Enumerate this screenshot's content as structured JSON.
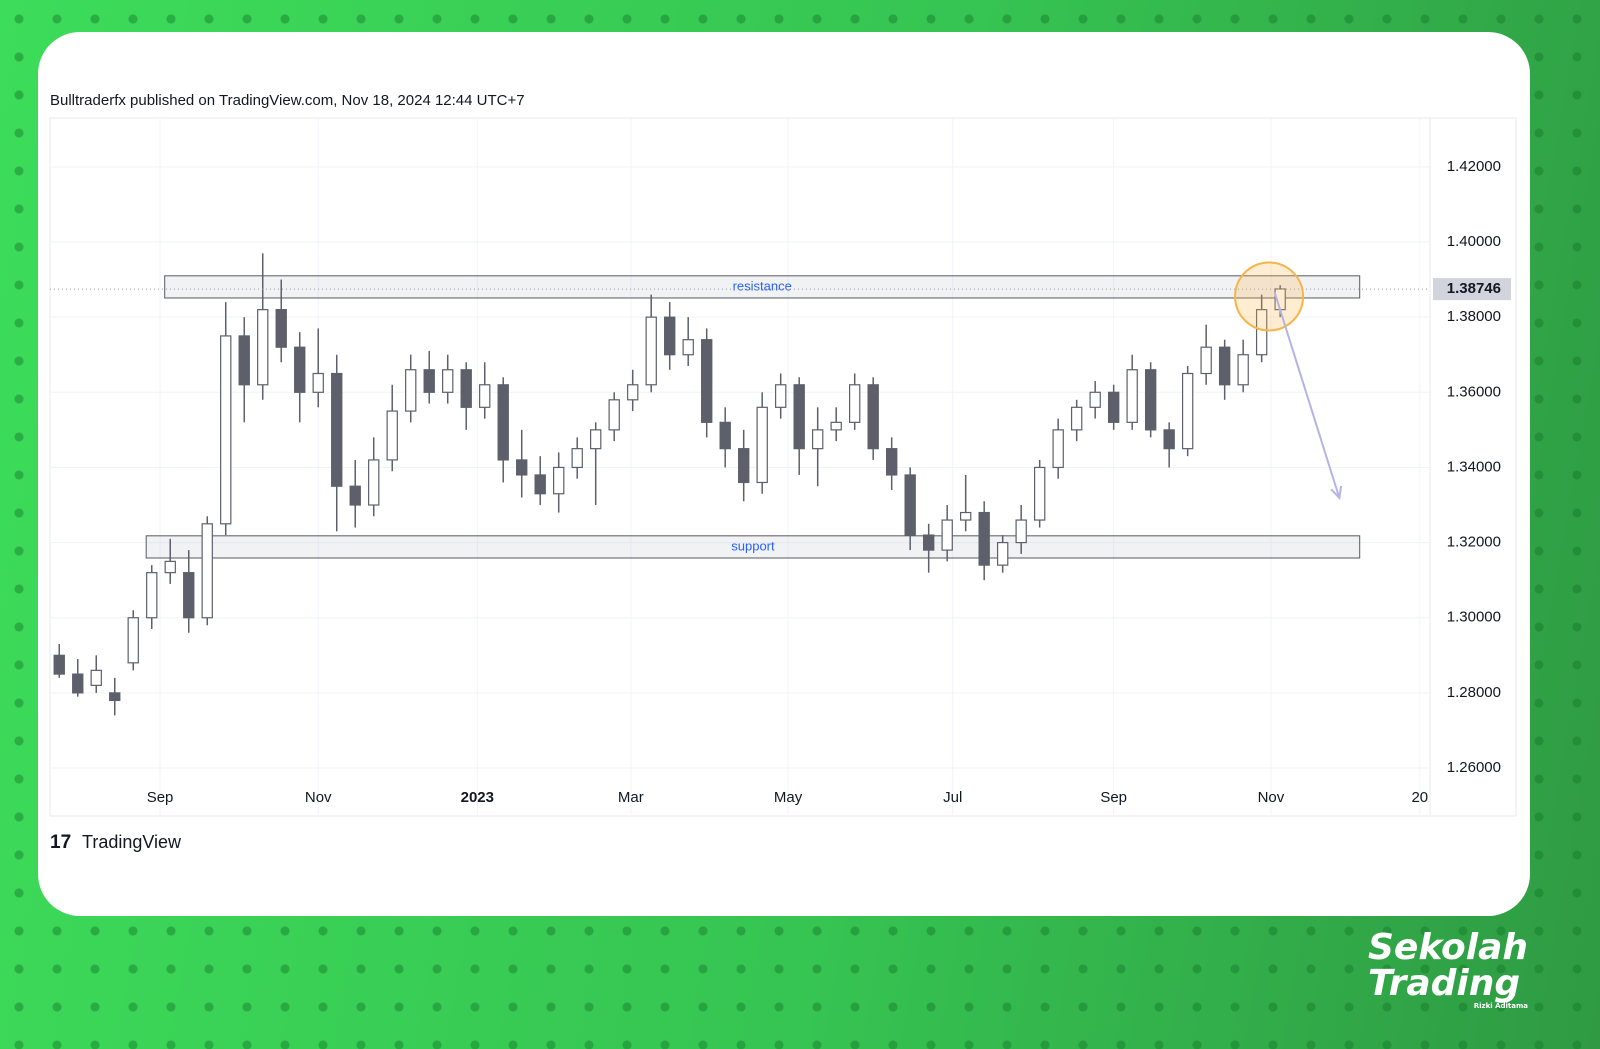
{
  "chart_data": {
    "type": "candlestick",
    "subtitle": "Bulltraderfx published on TradingView.com, Nov 18, 2024 12:44 UTC+7",
    "x": [
      0,
      1,
      2,
      3,
      4,
      5,
      6,
      7,
      8,
      9,
      10,
      11,
      12,
      13,
      14,
      15,
      16,
      17,
      18,
      19,
      20,
      21,
      22,
      23,
      24,
      25,
      26,
      27,
      28,
      29,
      30,
      31,
      32,
      33,
      34,
      35,
      36,
      37,
      38,
      39,
      40,
      41,
      42,
      43,
      44,
      45,
      46,
      47,
      48,
      49,
      50,
      51,
      52,
      53,
      54,
      55,
      56,
      57,
      58,
      59,
      60,
      61,
      62,
      63,
      64,
      65,
      66
    ],
    "open": [
      1.29,
      1.285,
      1.282,
      1.28,
      1.288,
      1.3,
      1.312,
      1.312,
      1.3,
      1.325,
      1.375,
      1.362,
      1.382,
      1.372,
      1.36,
      1.365,
      1.335,
      1.33,
      1.342,
      1.355,
      1.366,
      1.36,
      1.366,
      1.356,
      1.362,
      1.342,
      1.338,
      1.333,
      1.34,
      1.345,
      1.35,
      1.358,
      1.362,
      1.38,
      1.37,
      1.374,
      1.352,
      1.345,
      1.336,
      1.356,
      1.362,
      1.345,
      1.35,
      1.352,
      1.362,
      1.345,
      1.338,
      1.322,
      1.318,
      1.326,
      1.328,
      1.314,
      1.32,
      1.326,
      1.34,
      1.35,
      1.356,
      1.36,
      1.352,
      1.366,
      1.35,
      1.345,
      1.365,
      1.372,
      1.362,
      1.37,
      1.382
    ],
    "high": [
      1.293,
      1.289,
      1.29,
      1.284,
      1.302,
      1.314,
      1.321,
      1.318,
      1.327,
      1.384,
      1.38,
      1.397,
      1.39,
      1.376,
      1.377,
      1.37,
      1.342,
      1.348,
      1.362,
      1.37,
      1.371,
      1.37,
      1.368,
      1.368,
      1.364,
      1.35,
      1.343,
      1.344,
      1.348,
      1.352,
      1.36,
      1.366,
      1.386,
      1.384,
      1.38,
      1.377,
      1.356,
      1.35,
      1.36,
      1.365,
      1.364,
      1.356,
      1.356,
      1.365,
      1.364,
      1.348,
      1.34,
      1.325,
      1.33,
      1.338,
      1.331,
      1.322,
      1.33,
      1.342,
      1.353,
      1.358,
      1.363,
      1.362,
      1.37,
      1.368,
      1.352,
      1.367,
      1.378,
      1.374,
      1.374,
      1.386,
      1.3885
    ],
    "low": [
      1.284,
      1.279,
      1.28,
      1.274,
      1.286,
      1.297,
      1.309,
      1.296,
      1.298,
      1.322,
      1.352,
      1.358,
      1.368,
      1.352,
      1.356,
      1.323,
      1.324,
      1.327,
      1.339,
      1.352,
      1.357,
      1.357,
      1.35,
      1.353,
      1.336,
      1.332,
      1.33,
      1.328,
      1.337,
      1.33,
      1.347,
      1.355,
      1.36,
      1.366,
      1.367,
      1.348,
      1.34,
      1.331,
      1.333,
      1.353,
      1.338,
      1.335,
      1.347,
      1.35,
      1.342,
      1.334,
      1.318,
      1.312,
      1.315,
      1.323,
      1.31,
      1.312,
      1.317,
      1.324,
      1.337,
      1.347,
      1.353,
      1.35,
      1.35,
      1.348,
      1.34,
      1.343,
      1.362,
      1.358,
      1.36,
      1.368,
      1.38
    ],
    "close": [
      1.285,
      1.28,
      1.286,
      1.278,
      1.3,
      1.312,
      1.315,
      1.3,
      1.325,
      1.375,
      1.362,
      1.382,
      1.372,
      1.36,
      1.365,
      1.335,
      1.33,
      1.342,
      1.355,
      1.366,
      1.36,
      1.366,
      1.356,
      1.362,
      1.342,
      1.338,
      1.333,
      1.34,
      1.345,
      1.35,
      1.358,
      1.362,
      1.38,
      1.37,
      1.374,
      1.352,
      1.345,
      1.336,
      1.356,
      1.362,
      1.345,
      1.35,
      1.352,
      1.362,
      1.345,
      1.338,
      1.322,
      1.318,
      1.326,
      1.328,
      1.314,
      1.32,
      1.326,
      1.34,
      1.35,
      1.356,
      1.36,
      1.352,
      1.366,
      1.35,
      1.345,
      1.365,
      1.372,
      1.362,
      1.37,
      1.382,
      1.3875
    ],
    "up_color": "#ffffff",
    "down_color": "#5d606b",
    "wick_color": "#5d606b",
    "xlim": [
      -0.5,
      74.1
    ],
    "xticks": [
      {
        "value": 5.45,
        "label": "Sep"
      },
      {
        "value": 14.0,
        "label": "Nov"
      },
      {
        "value": 22.6,
        "label": "2023"
      },
      {
        "value": 30.9,
        "label": "Mar"
      },
      {
        "value": 39.4,
        "label": "May"
      },
      {
        "value": 48.3,
        "label": "Jul"
      },
      {
        "value": 57.0,
        "label": "Sep"
      },
      {
        "value": 65.5,
        "label": "Nov"
      },
      {
        "value": 73.55,
        "label": "20"
      }
    ],
    "ylim": [
      1.2475,
      1.433
    ],
    "yticks": [
      {
        "value": 1.26,
        "label": "1.26000"
      },
      {
        "value": 1.28,
        "label": "1.28000"
      },
      {
        "value": 1.3,
        "label": "1.30000"
      },
      {
        "value": 1.32,
        "label": "1.32000"
      },
      {
        "value": 1.34,
        "label": "1.34000"
      },
      {
        "value": 1.36,
        "label": "1.36000"
      },
      {
        "value": 1.38,
        "label": "1.38000"
      },
      {
        "value": 1.4,
        "label": "1.40000"
      },
      {
        "value": 1.42,
        "label": "1.42000"
      }
    ],
    "last_price": 1.38746,
    "grid": true,
    "zones": [
      {
        "label": "resistance",
        "x": [
          5.7,
          70.3
        ],
        "y": [
          1.3851,
          1.391
        ]
      },
      {
        "label": "support",
        "x": [
          4.7,
          70.3
        ],
        "y": [
          1.3159,
          1.3218
        ]
      }
    ],
    "highlight": {
      "x": 65.4,
      "y": 1.3855
    },
    "arrow": {
      "x": [
        65.7,
        69.2
      ],
      "y": [
        1.3866,
        1.3319
      ]
    },
    "watermark": "TradingView"
  },
  "brand": {
    "line1": "Sekolah",
    "line2": "Trading",
    "author": "Rizki Aditama"
  }
}
